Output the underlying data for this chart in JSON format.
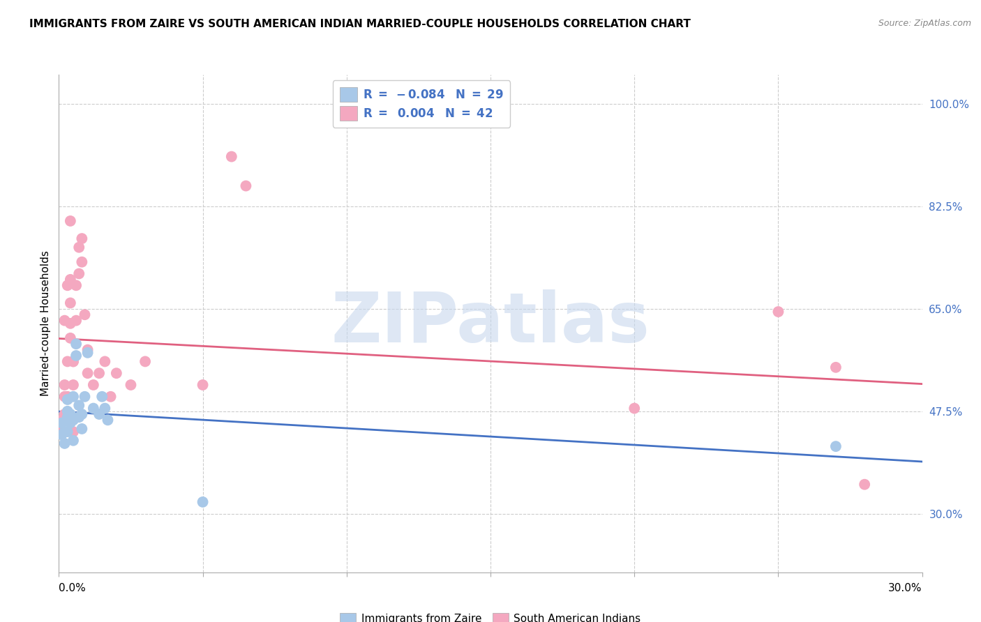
{
  "title": "IMMIGRANTS FROM ZAIRE VS SOUTH AMERICAN INDIAN MARRIED-COUPLE HOUSEHOLDS CORRELATION CHART",
  "source": "Source: ZipAtlas.com",
  "ylabel": "Married-couple Households",
  "ytick_labels": [
    "100.0%",
    "82.5%",
    "65.0%",
    "47.5%",
    "30.0%"
  ],
  "ytick_values": [
    1.0,
    0.825,
    0.65,
    0.475,
    0.3
  ],
  "xmin": 0.0,
  "xmax": 0.3,
  "ymin": 0.2,
  "ymax": 1.05,
  "blue_color": "#a8c8e8",
  "pink_color": "#f4a8c0",
  "blue_line_color": "#4472c4",
  "pink_line_color": "#e06080",
  "blue_x": [
    0.001,
    0.001,
    0.002,
    0.002,
    0.003,
    0.003,
    0.003,
    0.004,
    0.004,
    0.004,
    0.005,
    0.005,
    0.005,
    0.006,
    0.006,
    0.007,
    0.007,
    0.008,
    0.008,
    0.009,
    0.01,
    0.012,
    0.014,
    0.015,
    0.016,
    0.017,
    0.05,
    0.27,
    0.003
  ],
  "blue_y": [
    0.455,
    0.435,
    0.42,
    0.44,
    0.465,
    0.475,
    0.495,
    0.455,
    0.46,
    0.47,
    0.425,
    0.46,
    0.5,
    0.57,
    0.59,
    0.465,
    0.485,
    0.445,
    0.47,
    0.5,
    0.575,
    0.48,
    0.47,
    0.5,
    0.48,
    0.46,
    0.32,
    0.415,
    0.44
  ],
  "pink_x": [
    0.001,
    0.001,
    0.002,
    0.002,
    0.002,
    0.003,
    0.003,
    0.003,
    0.004,
    0.004,
    0.004,
    0.004,
    0.005,
    0.005,
    0.005,
    0.006,
    0.006,
    0.007,
    0.007,
    0.008,
    0.008,
    0.009,
    0.01,
    0.01,
    0.012,
    0.014,
    0.016,
    0.018,
    0.02,
    0.025,
    0.03,
    0.05,
    0.06,
    0.065,
    0.2,
    0.25,
    0.27,
    0.28,
    0.002,
    0.003,
    0.004,
    0.005
  ],
  "pink_y": [
    0.44,
    0.46,
    0.47,
    0.5,
    0.52,
    0.46,
    0.5,
    0.56,
    0.6,
    0.625,
    0.66,
    0.7,
    0.44,
    0.52,
    0.56,
    0.63,
    0.69,
    0.71,
    0.755,
    0.73,
    0.77,
    0.64,
    0.58,
    0.54,
    0.52,
    0.54,
    0.56,
    0.5,
    0.54,
    0.52,
    0.56,
    0.52,
    0.91,
    0.86,
    0.48,
    0.645,
    0.55,
    0.35,
    0.63,
    0.69,
    0.8,
    0.56
  ],
  "watermark_text": "ZIPatlas",
  "watermark_color": "#c8d8ee",
  "grid_color": "#cccccc",
  "title_fontsize": 11,
  "source_fontsize": 9,
  "tick_fontsize": 11,
  "ylabel_fontsize": 11
}
